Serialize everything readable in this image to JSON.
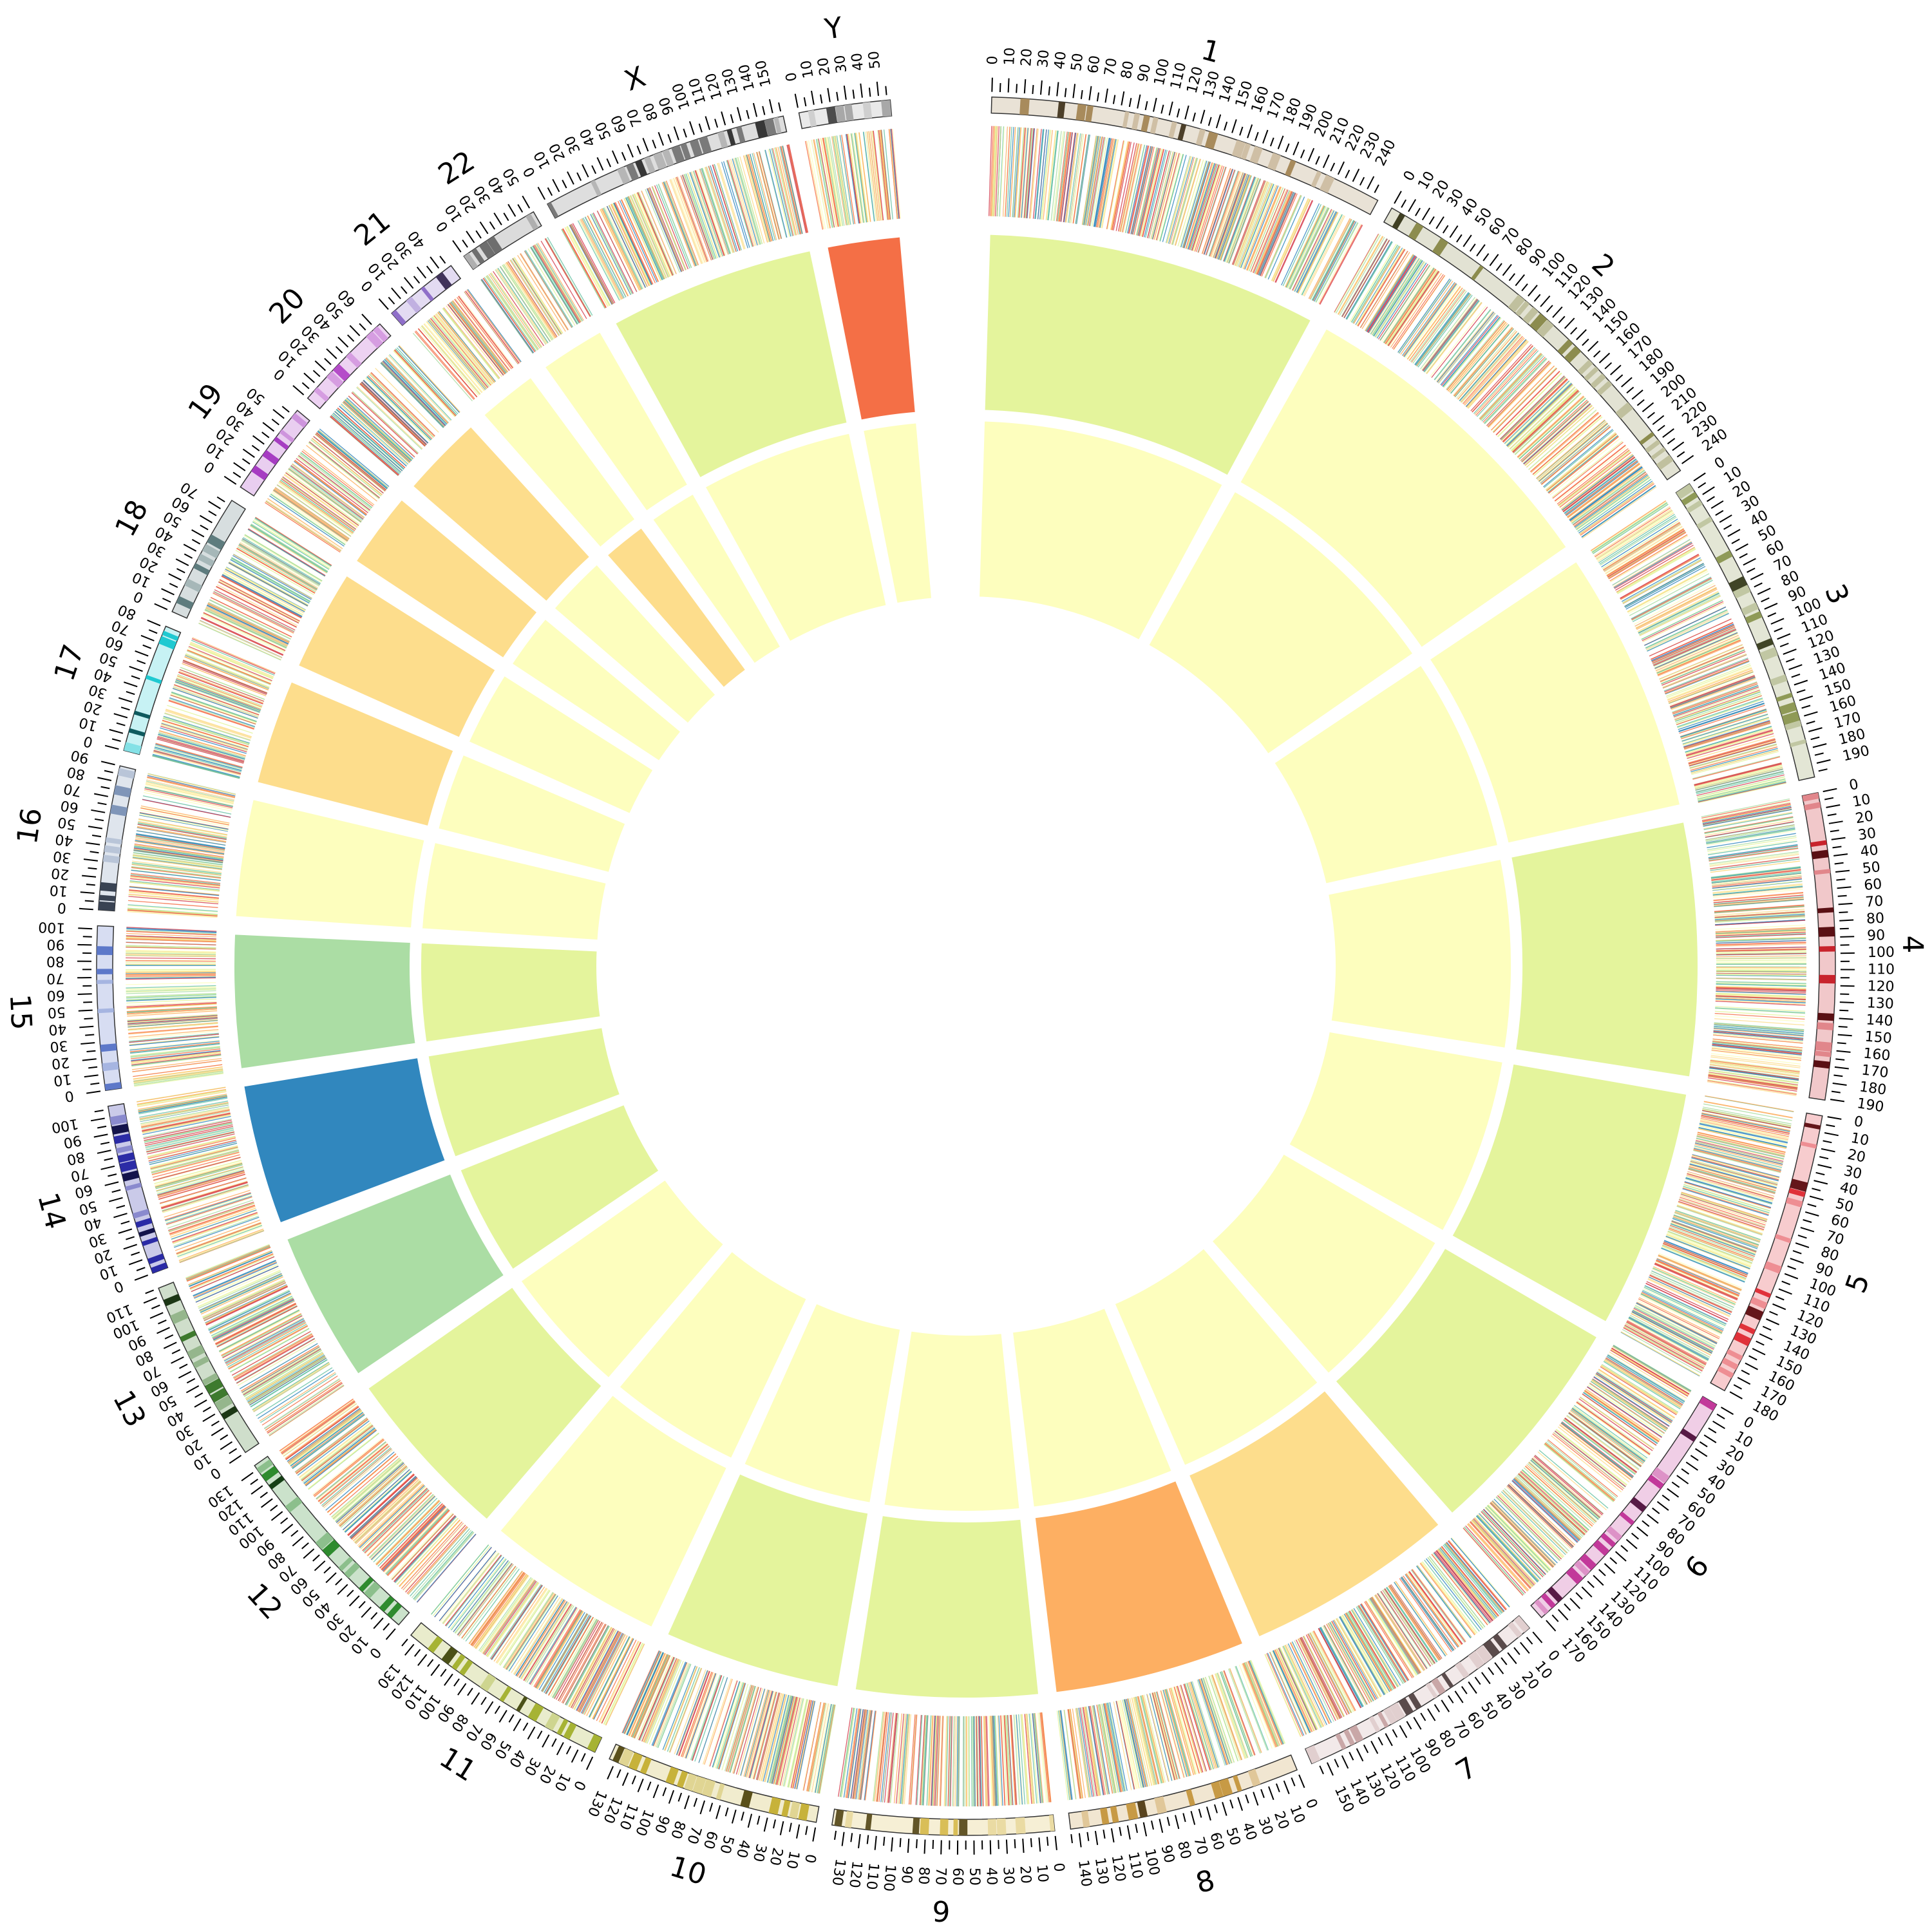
{
  "chart_data": {
    "type": "circos",
    "chromosomes": [
      {
        "name": "1",
        "length": 249,
        "color": "#A88B5C"
      },
      {
        "name": "2",
        "length": 243,
        "color": "#8C8C4E"
      },
      {
        "name": "3",
        "length": 198,
        "color": "#8F9A57"
      },
      {
        "name": "4",
        "length": 191,
        "color": "#C8232C"
      },
      {
        "name": "5",
        "length": 181,
        "color": "#E0323A"
      },
      {
        "name": "6",
        "length": 171,
        "color": "#C2399A"
      },
      {
        "name": "7",
        "length": 159,
        "color": "#C9A7A7"
      },
      {
        "name": "8",
        "length": 145,
        "color": "#C79A45"
      },
      {
        "name": "9",
        "length": 138,
        "color": "#D9BE57"
      },
      {
        "name": "10",
        "length": 134,
        "color": "#C7B23A"
      },
      {
        "name": "11",
        "length": 135,
        "color": "#A6B334"
      },
      {
        "name": "12",
        "length": 133,
        "color": "#2E8B2E"
      },
      {
        "name": "13",
        "length": 115,
        "color": "#3E7A2E"
      },
      {
        "name": "14",
        "length": 107,
        "color": "#2B2BA6"
      },
      {
        "name": "15",
        "length": 102,
        "color": "#5D78C9"
      },
      {
        "name": "16",
        "length": 90,
        "color": "#7F95B8"
      },
      {
        "name": "17",
        "length": 81,
        "color": "#1FC9D1"
      },
      {
        "name": "18",
        "length": 78,
        "color": "#5E7C7E"
      },
      {
        "name": "19",
        "length": 59,
        "color": "#A63CC2"
      },
      {
        "name": "20",
        "length": 64,
        "color": "#B54CC9"
      },
      {
        "name": "21",
        "length": 47,
        "color": "#8F6FC9"
      },
      {
        "name": "22",
        "length": 51,
        "color": "#6E6E6E"
      },
      {
        "name": "X",
        "length": 156,
        "color": "#7A7A7A"
      },
      {
        "name": "Y",
        "length": 57,
        "color": "#A8A8A8"
      }
    ],
    "heatmap_outer": [
      "#E4F49C",
      "#FDFEBE",
      "#FDFEBE",
      "#E4F49C",
      "#E4F49C",
      "#E4F49C",
      "#FDDD8C",
      "#FDAF62",
      "#E4F49C",
      "#E4F49C",
      "#FDFEBE",
      "#E4F49C",
      "#ABDDA4",
      "#3187BE",
      "#ABDDA4",
      "#FDFEBE",
      "#FDDD8C",
      "#FDDD8C",
      "#FDDD8C",
      "#FDDD8C",
      "#FDFEBE",
      "#FDFEBE",
      "#E4F49C",
      "#F46F46"
    ],
    "heatmap_inner": [
      "#FDFEBE",
      "#FDFEBE",
      "#FDFEBE",
      "#FDFEBE",
      "#FDFEBE",
      "#FDFEBE",
      "#FDFEBE",
      "#FDFEBE",
      "#FDFEBE",
      "#FDFEBE",
      "#FDFEBE",
      "#FDFEBE",
      "#E4F49C",
      "#E4F49C",
      "#E4F49C",
      "#FDFEBE",
      "#FDFEBE",
      "#FDFEBE",
      "#FDFEBE",
      "#FDFEBE",
      "#FDDD8C",
      "#FDFEBE",
      "#FDFEBE",
      "#FDFEBE"
    ],
    "stripe_palette": [
      "#E4F49C",
      "#FDDD8C",
      "#FDAF62",
      "#F46F46",
      "#D53E4F",
      "#ABDDA4",
      "#66C2A5",
      "#3187BE",
      "#FDFEBE"
    ],
    "tick_step": 10,
    "grid": false,
    "legend": "none"
  }
}
